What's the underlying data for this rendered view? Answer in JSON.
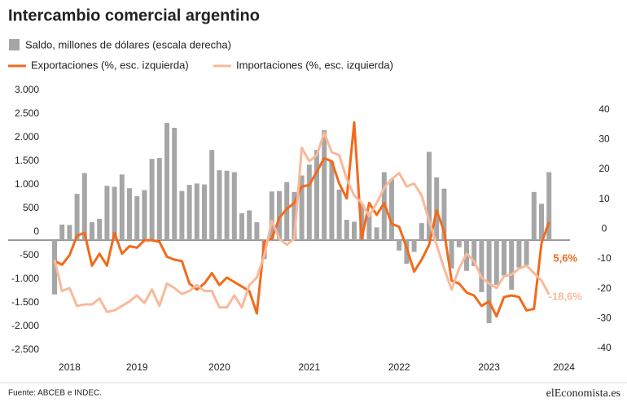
{
  "chart_data": {
    "type": "bar-line",
    "title": "Intercambio comercial argentino",
    "source": "Fuente: ABCEB e INDEC.",
    "brand": "elEconomista.es",
    "categories": [
      null,
      null,
      "2018",
      null,
      null,
      null,
      null,
      null,
      null,
      null,
      null,
      "2019",
      null,
      null,
      null,
      null,
      null,
      null,
      null,
      null,
      null,
      null,
      "2020",
      null,
      null,
      null,
      null,
      null,
      null,
      null,
      null,
      null,
      null,
      null,
      "2021",
      null,
      null,
      null,
      null,
      null,
      null,
      null,
      null,
      null,
      null,
      null,
      "2022",
      null,
      null,
      null,
      null,
      null,
      null,
      null,
      null,
      null,
      null,
      null,
      "2023",
      null,
      null,
      null,
      null,
      null,
      null,
      null,
      null,
      null,
      "2024"
    ],
    "ylim": [
      -2500,
      3000
    ],
    "yticks": [
      {
        "value": 3000,
        "label": "3.000"
      },
      {
        "value": 2500,
        "label": "2.500"
      },
      {
        "value": 2000,
        "label": "2.000"
      },
      {
        "value": 1500,
        "label": "1.500"
      },
      {
        "value": 1000,
        "label": "1.000"
      },
      500,
      0,
      -500,
      {
        "value": -1000,
        "label": "-1.000"
      },
      {
        "value": -1500,
        "label": "-1.500"
      },
      {
        "value": -2000,
        "label": "-2.000"
      },
      {
        "value": -2500,
        "label": "-2.500"
      }
    ],
    "y2lim": [
      -40,
      47
    ],
    "y2ticks": [
      40,
      30,
      20,
      10,
      0,
      -10,
      -20,
      -30,
      -40
    ],
    "series": [
      {
        "name": "Saldo, millones de dólares (escala derecha)",
        "type": "bar",
        "color": "#a6a6a6",
        "values": [
          -1150,
          330,
          320,
          980,
          1420,
          380,
          450,
          1150,
          1130,
          1390,
          1100,
          930,
          1060,
          1720,
          1740,
          2480,
          2380,
          1040,
          1170,
          1200,
          1180,
          1910,
          1480,
          1470,
          1440,
          570,
          630,
          380,
          -400,
          1030,
          1040,
          1230,
          1020,
          1370,
          1600,
          1910,
          2330,
          1670,
          1070,
          430,
          390,
          760,
          580,
          270,
          1440,
          1290,
          -220,
          -500,
          -250,
          360,
          1870,
          1330,
          1090,
          -600,
          -150,
          -650,
          -550,
          -1100,
          -1760,
          -950,
          -750,
          -1050,
          -580,
          -530,
          1020,
          770,
          1440,
          null,
          null
        ]
      },
      {
        "name": "Exportaciones (%, esc. izquierda)",
        "type": "line",
        "axis": "y2",
        "color": "#f26a1b",
        "values": [
          -7.4,
          -8.7,
          -5.5,
          1,
          2,
          -9,
          -5,
          -9,
          2,
          -5,
          -2.5,
          -3,
          -0.5,
          -0.5,
          -1,
          -6,
          -7,
          -7.5,
          -15,
          -17,
          -15,
          -11.5,
          -15.5,
          -13,
          -14.5,
          -16,
          -17.5,
          -25,
          -1,
          0,
          7,
          10,
          12,
          17.5,
          18,
          22.5,
          27,
          26,
          18.5,
          13.5,
          39,
          0,
          12,
          8,
          12,
          5,
          4,
          -3,
          -11,
          -7,
          -2,
          9.5,
          2.5,
          -14,
          -15,
          -18,
          -19,
          -22.5,
          -21,
          -26,
          -19.5,
          -19,
          -19.5,
          -24,
          -23.5,
          -1.5,
          5.6,
          null,
          null
        ],
        "value_labels": [
          null,
          null,
          null,
          null,
          null,
          null,
          null,
          null,
          null,
          null,
          null,
          null,
          null,
          null,
          null,
          null,
          null,
          null,
          null,
          null,
          null,
          null,
          null,
          null,
          null,
          null,
          null,
          null,
          null,
          null,
          null,
          null,
          null,
          null,
          null,
          null,
          null,
          null,
          null,
          null,
          null,
          null,
          null,
          null,
          null,
          null,
          null,
          null,
          null,
          null,
          null,
          null,
          null,
          null,
          null,
          null,
          null,
          null,
          null,
          null,
          null,
          null,
          null,
          null,
          null,
          null,
          "5,6%",
          null,
          null
        ]
      },
      {
        "name": "Importaciones (%, esc. izquierda)",
        "type": "line",
        "axis": "y2",
        "color": "#f9b99a",
        "values": [
          -7,
          -17.5,
          -16.5,
          -22.5,
          -22,
          -22,
          -20,
          -24.5,
          -24,
          -22.5,
          -21,
          -19,
          -21.5,
          -17,
          -22.5,
          -15,
          -16.5,
          -18.5,
          -17.5,
          -15.5,
          -17.5,
          -17.5,
          -23,
          -23,
          -19,
          -23,
          -15.5,
          -13,
          -5.5,
          6,
          0,
          -2,
          0,
          30.5,
          26,
          28,
          35.5,
          29,
          28,
          20,
          14.5,
          12,
          7.5,
          12,
          17,
          20,
          22,
          17.5,
          18.5,
          14.5,
          6,
          -2,
          -10,
          -17,
          -10,
          -5,
          -7.5,
          -13,
          -15,
          -16.5,
          -12.5,
          -12,
          -10,
          -9,
          -11.5,
          -14,
          -18.6,
          null,
          null
        ],
        "value_labels": [
          null,
          null,
          null,
          null,
          null,
          null,
          null,
          null,
          null,
          null,
          null,
          null,
          null,
          null,
          null,
          null,
          null,
          null,
          null,
          null,
          null,
          null,
          null,
          null,
          null,
          null,
          null,
          null,
          null,
          null,
          null,
          null,
          null,
          null,
          null,
          null,
          null,
          null,
          null,
          null,
          null,
          null,
          null,
          null,
          null,
          null,
          null,
          null,
          null,
          null,
          null,
          null,
          null,
          null,
          null,
          null,
          null,
          null,
          null,
          null,
          null,
          null,
          null,
          null,
          null,
          null,
          "-18,6%",
          null,
          null
        ]
      }
    ]
  }
}
